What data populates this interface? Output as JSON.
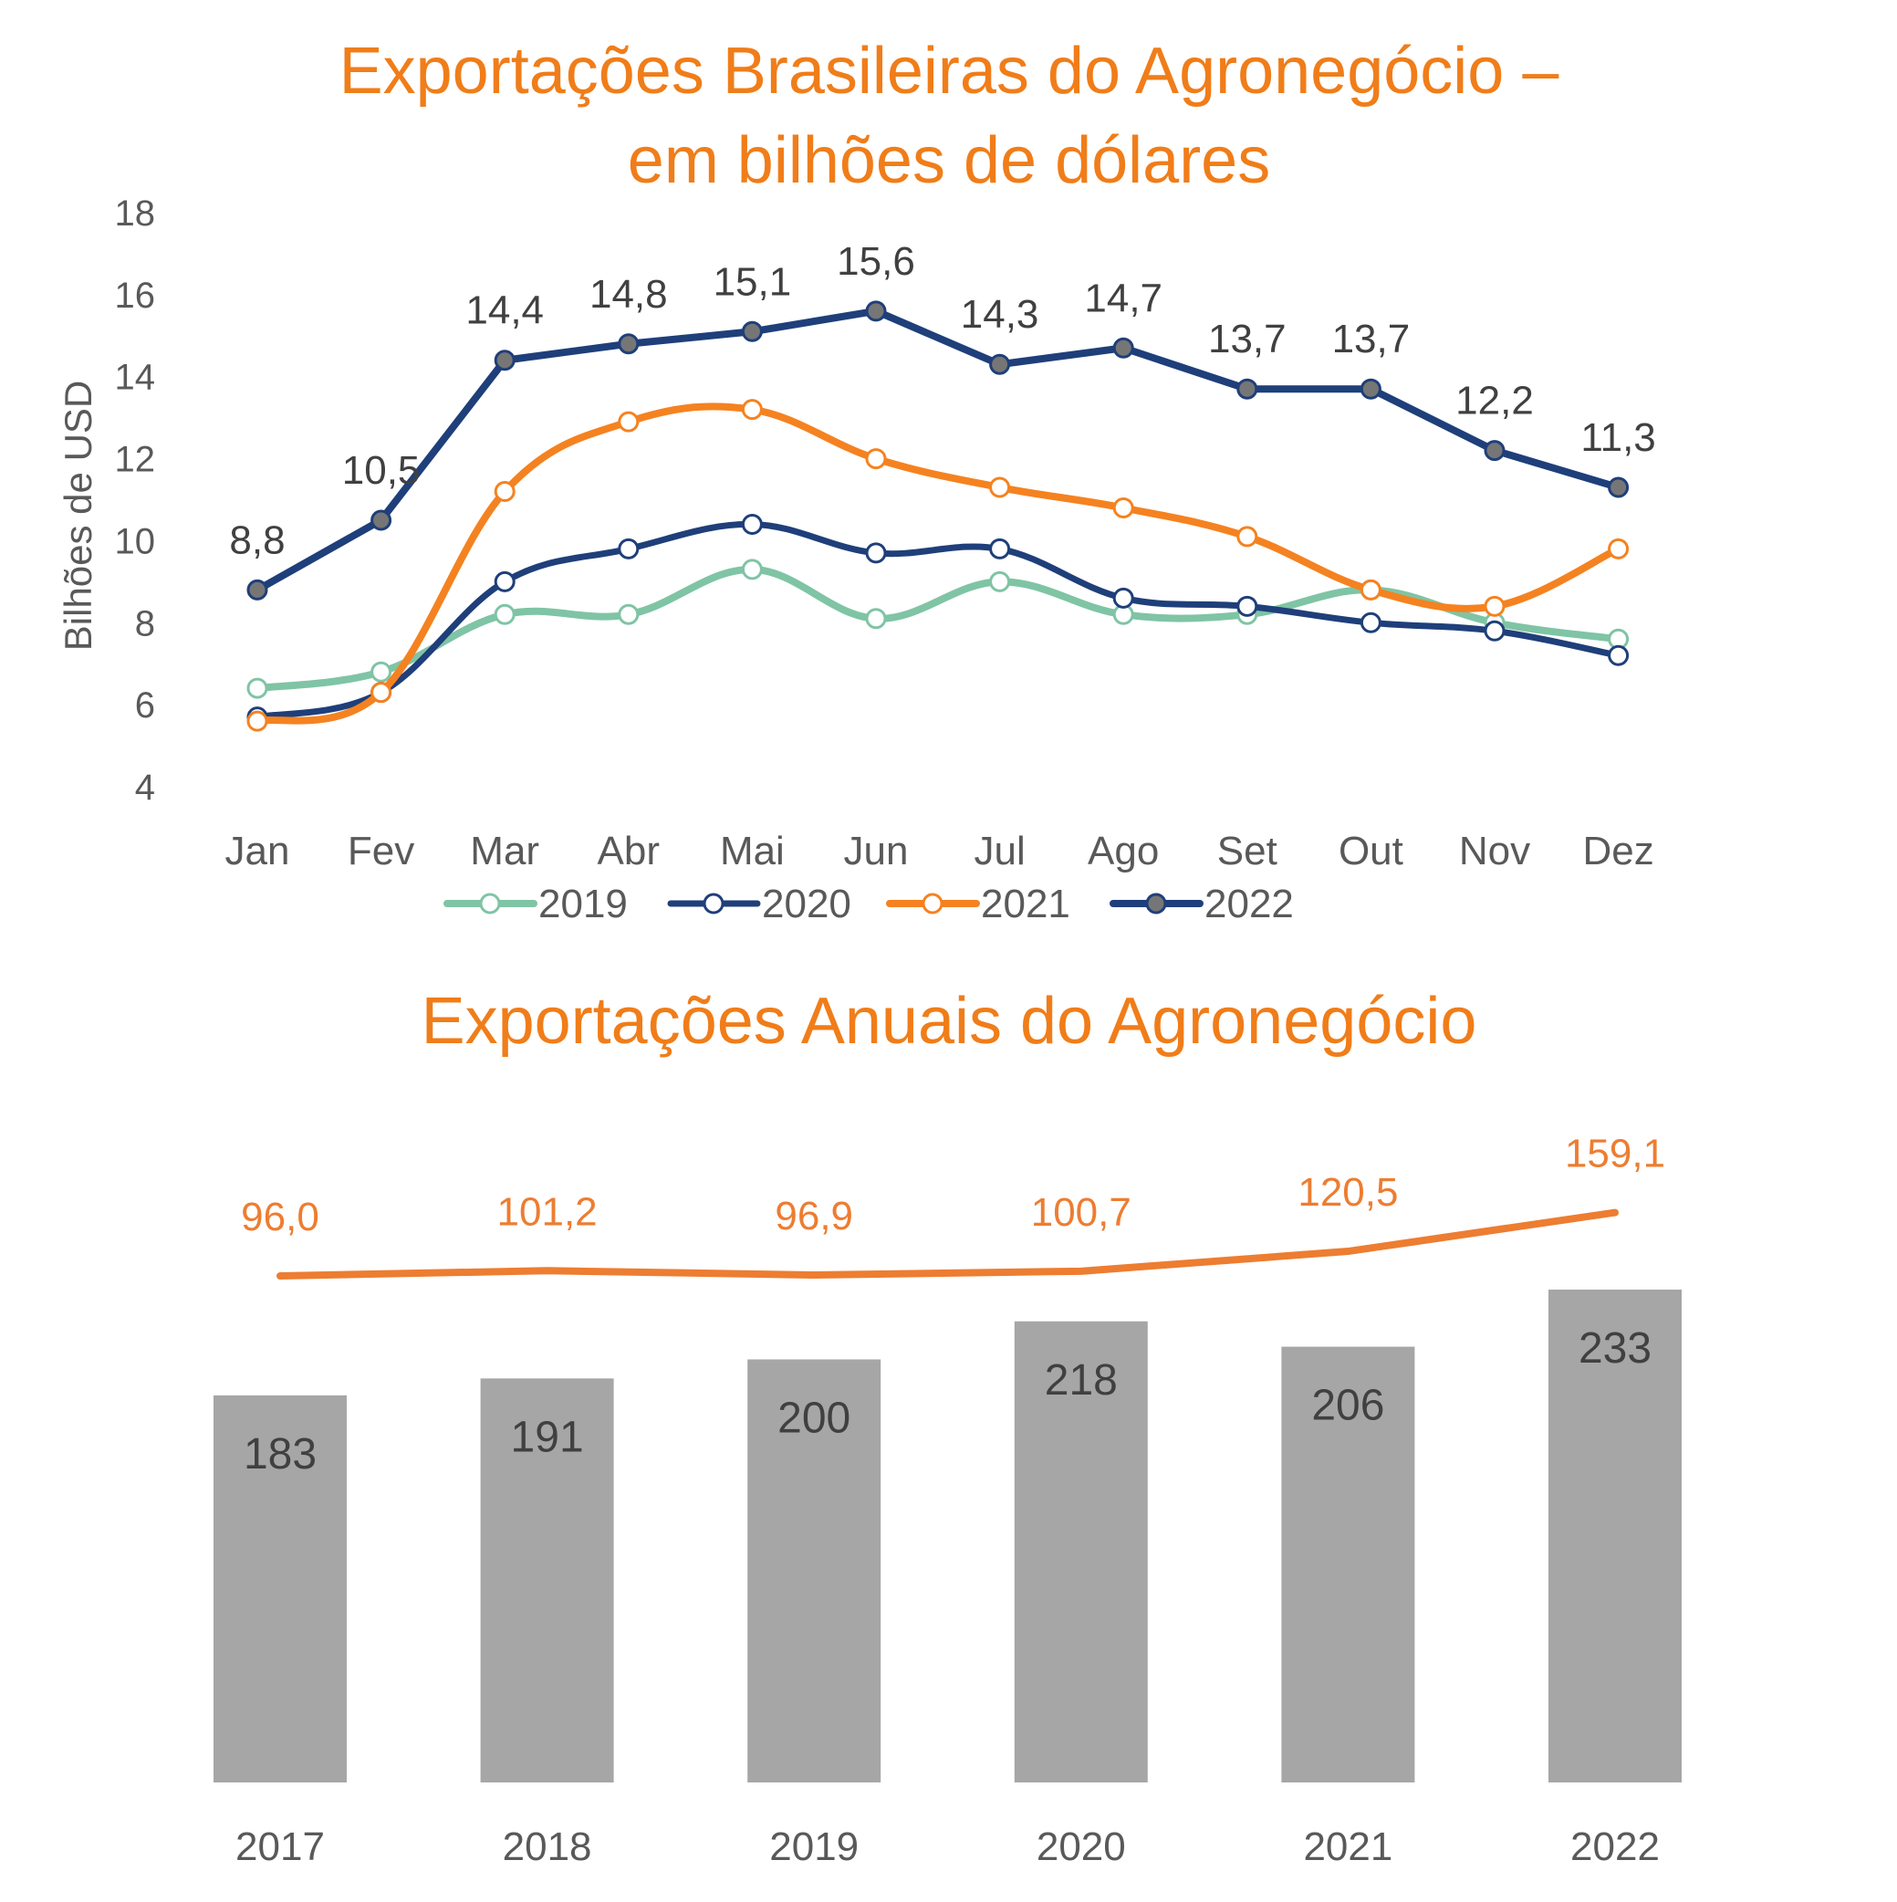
{
  "colors": {
    "title": "#F07D19",
    "s2019": "#7FC4A5",
    "s2020": "#1F3F7A",
    "s2021": "#F58220",
    "s2022": "#1F3F7A",
    "s2022_marker": "#767676",
    "bar": "#A6A6A6",
    "annual_line": "#ED7D31",
    "text": "#404040",
    "axis_text": "#595959"
  },
  "chart_data": [
    {
      "type": "line",
      "title_line1": "Exportações Brasileiras do Agronegócio –",
      "title_line2": "em bilhões de dólares",
      "ylabel": "Bilhões de USD",
      "xlabel": "",
      "ylim": [
        4,
        18
      ],
      "yticks": [
        "4",
        "6",
        "8",
        "10",
        "12",
        "14",
        "16",
        "18"
      ],
      "categories": [
        "Jan",
        "Fev",
        "Mar",
        "Abr",
        "Mai",
        "Jun",
        "Jul",
        "Ago",
        "Set",
        "Out",
        "Nov",
        "Dez"
      ],
      "series": [
        {
          "name": "2019",
          "values": [
            6.4,
            6.8,
            8.2,
            8.2,
            9.3,
            8.1,
            9.0,
            8.2,
            8.2,
            8.8,
            8.0,
            7.6
          ]
        },
        {
          "name": "2020",
          "values": [
            5.7,
            6.3,
            9.0,
            9.8,
            10.4,
            9.7,
            9.8,
            8.6,
            8.4,
            8.0,
            7.8,
            7.2
          ]
        },
        {
          "name": "2021",
          "values": [
            5.6,
            6.3,
            11.2,
            12.9,
            13.2,
            12.0,
            11.3,
            10.8,
            10.1,
            8.8,
            8.4,
            9.8
          ]
        },
        {
          "name": "2022",
          "values": [
            8.8,
            10.5,
            14.4,
            14.8,
            15.1,
            15.6,
            14.3,
            14.7,
            13.7,
            13.7,
            12.2,
            11.3
          ],
          "labels": [
            "8,8",
            "10,5",
            "14,4",
            "14,8",
            "15,1",
            "15,6",
            "14,3",
            "14,7",
            "13,7",
            "13,7",
            "12,2",
            "11,3"
          ]
        }
      ],
      "legend": [
        "2019",
        "2020",
        "2021",
        "2022"
      ],
      "legend_position": "bottom"
    },
    {
      "type": "bar",
      "title": "Exportações Anuais do Agronegócio",
      "categories": [
        "2017",
        "2018",
        "2019",
        "2020",
        "2021",
        "2022"
      ],
      "bar_values": [
        183,
        191,
        200,
        218,
        206,
        233
      ],
      "bar_labels": [
        "183",
        "191",
        "200",
        "218",
        "206",
        "233"
      ],
      "line_values": [
        96.0,
        101.2,
        96.9,
        100.7,
        120.5,
        159.1
      ],
      "line_labels": [
        "96,0",
        "101,2",
        "96,9",
        "100,7",
        "120,5",
        "159,1"
      ],
      "xlabel": "",
      "ylabel": ""
    }
  ]
}
